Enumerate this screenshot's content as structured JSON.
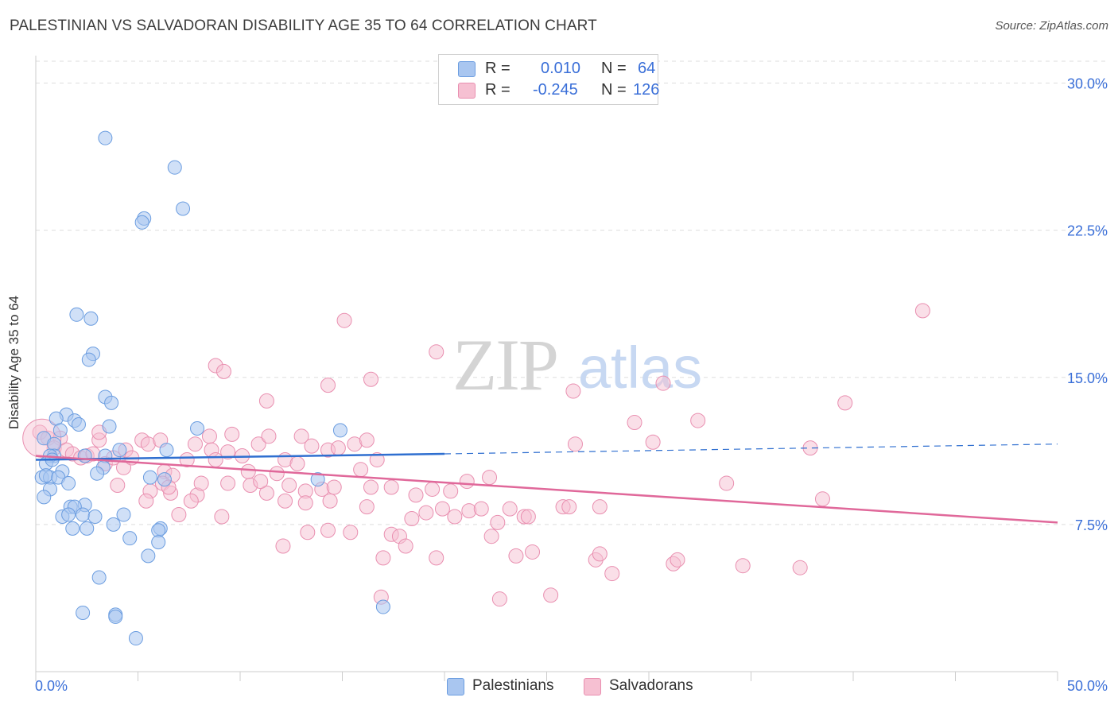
{
  "title": "PALESTINIAN VS SALVADORAN DISABILITY AGE 35 TO 64 CORRELATION CHART",
  "source": "Source: ZipAtlas.com",
  "watermark": {
    "zip": "ZIP",
    "atlas": "atlas"
  },
  "legend": {
    "rows": [
      {
        "r_label": "R =",
        "r_value": "0.010",
        "n_label": "N =",
        "n_value": "64"
      },
      {
        "r_label": "R =",
        "r_value": "-0.245",
        "n_label": "N =",
        "n_value": "126"
      }
    ]
  },
  "colors": {
    "palestinian_fill": "#a9c6f0",
    "palestinian_stroke": "#6b9de0",
    "palestinian_line": "#2f6fd0",
    "salvadoran_fill": "#f6c0d2",
    "salvadoran_stroke": "#e98fb0",
    "salvadoran_line": "#e0689a",
    "tick_label": "#3a6fd8",
    "grid": "#dddddd"
  },
  "chart_data": {
    "type": "scatter",
    "title": "PALESTINIAN VS SALVADORAN DISABILITY AGE 35 TO 64 CORRELATION CHART",
    "xlabel": "",
    "ylabel": "Disability Age 35 to 64",
    "xlim": [
      0,
      50
    ],
    "ylim": [
      0,
      31.4
    ],
    "x_tick_labels": [
      "0.0%",
      "50.0%"
    ],
    "y_ticks": [
      7.5,
      15.0,
      22.5,
      30.0
    ],
    "y_tick_labels": [
      "7.5%",
      "15.0%",
      "22.5%",
      "30.0%"
    ],
    "legend_position": "top-center",
    "series": [
      {
        "name": "Palestinians",
        "r": 0.01,
        "n": 64,
        "trend": {
          "x0": 0,
          "y0": 10.8,
          "x1": 20,
          "y1": 11.1,
          "dashed_to": 50,
          "dashed_y": 11.6
        },
        "points": [
          [
            3.4,
            27.2
          ],
          [
            6.8,
            25.7
          ],
          [
            5.3,
            23.1
          ],
          [
            7.2,
            23.6
          ],
          [
            5.2,
            22.9
          ],
          [
            2.0,
            18.2
          ],
          [
            2.7,
            18.0
          ],
          [
            2.8,
            16.2
          ],
          [
            2.6,
            15.9
          ],
          [
            3.4,
            14.0
          ],
          [
            3.7,
            13.7
          ],
          [
            1.5,
            13.1
          ],
          [
            1.0,
            12.9
          ],
          [
            1.9,
            12.8
          ],
          [
            2.1,
            12.6
          ],
          [
            3.6,
            12.5
          ],
          [
            7.9,
            12.4
          ],
          [
            1.2,
            12.3
          ],
          [
            14.9,
            12.3
          ],
          [
            0.4,
            11.9
          ],
          [
            0.9,
            11.6
          ],
          [
            4.1,
            11.3
          ],
          [
            6.4,
            11.3
          ],
          [
            0.9,
            11.0
          ],
          [
            0.7,
            11.0
          ],
          [
            3.4,
            11.0
          ],
          [
            2.4,
            11.0
          ],
          [
            0.5,
            10.6
          ],
          [
            0.8,
            10.8
          ],
          [
            3.3,
            10.4
          ],
          [
            1.3,
            10.2
          ],
          [
            3.0,
            10.1
          ],
          [
            0.3,
            9.9
          ],
          [
            0.7,
            9.9
          ],
          [
            0.5,
            10.0
          ],
          [
            1.1,
            9.9
          ],
          [
            1.6,
            9.6
          ],
          [
            5.6,
            9.9
          ],
          [
            6.3,
            9.8
          ],
          [
            13.8,
            9.8
          ],
          [
            0.7,
            9.3
          ],
          [
            0.4,
            8.9
          ],
          [
            4.3,
            8.0
          ],
          [
            1.7,
            8.4
          ],
          [
            2.4,
            8.5
          ],
          [
            1.9,
            8.4
          ],
          [
            1.3,
            7.9
          ],
          [
            1.6,
            8.0
          ],
          [
            2.3,
            8.0
          ],
          [
            2.9,
            7.9
          ],
          [
            3.8,
            7.5
          ],
          [
            1.8,
            7.3
          ],
          [
            2.5,
            7.3
          ],
          [
            6.1,
            7.3
          ],
          [
            6.0,
            7.2
          ],
          [
            4.6,
            6.8
          ],
          [
            6.0,
            6.6
          ],
          [
            5.5,
            5.9
          ],
          [
            3.1,
            4.8
          ],
          [
            2.3,
            3.0
          ],
          [
            3.9,
            2.9
          ],
          [
            3.9,
            2.8
          ],
          [
            17.0,
            3.3
          ],
          [
            4.9,
            1.7
          ]
        ]
      },
      {
        "name": "Salvadorans",
        "r": -0.245,
        "n": 126,
        "trend": {
          "x0": 0,
          "y0": 11.0,
          "x1": 50,
          "y1": 7.6
        },
        "points": [
          [
            0.2,
            12.2
          ],
          [
            0.6,
            11.9
          ],
          [
            1.2,
            11.9
          ],
          [
            0.9,
            11.4
          ],
          [
            1.5,
            11.3
          ],
          [
            1.8,
            11.1
          ],
          [
            2.2,
            10.9
          ],
          [
            2.5,
            11.0
          ],
          [
            2.8,
            11.1
          ],
          [
            3.1,
            11.8
          ],
          [
            3.1,
            12.2
          ],
          [
            3.4,
            10.6
          ],
          [
            3.8,
            10.9
          ],
          [
            4.3,
            10.4
          ],
          [
            4.4,
            11.3
          ],
          [
            4.7,
            10.9
          ],
          [
            5.2,
            11.8
          ],
          [
            5.5,
            11.6
          ],
          [
            6.1,
            11.8
          ],
          [
            6.3,
            10.2
          ],
          [
            6.7,
            10.0
          ],
          [
            7.4,
            10.8
          ],
          [
            7.8,
            11.6
          ],
          [
            8.5,
            12.0
          ],
          [
            8.6,
            11.3
          ],
          [
            8.8,
            10.8
          ],
          [
            9.6,
            12.1
          ],
          [
            10.1,
            11.0
          ],
          [
            10.4,
            10.2
          ],
          [
            10.9,
            11.6
          ],
          [
            11.4,
            12.0
          ],
          [
            11.8,
            10.1
          ],
          [
            12.2,
            10.8
          ],
          [
            12.8,
            10.6
          ],
          [
            13.0,
            12.0
          ],
          [
            13.5,
            11.5
          ],
          [
            14.3,
            11.3
          ],
          [
            14.8,
            11.4
          ],
          [
            15.6,
            11.6
          ],
          [
            16.2,
            11.8
          ],
          [
            16.7,
            10.8
          ],
          [
            4.0,
            9.5
          ],
          [
            5.6,
            9.2
          ],
          [
            6.2,
            9.6
          ],
          [
            6.6,
            9.1
          ],
          [
            7.9,
            9.0
          ],
          [
            8.1,
            9.6
          ],
          [
            9.4,
            9.6
          ],
          [
            10.5,
            9.5
          ],
          [
            11.3,
            9.1
          ],
          [
            12.4,
            9.5
          ],
          [
            13.2,
            9.2
          ],
          [
            14.0,
            9.3
          ],
          [
            14.6,
            9.4
          ],
          [
            16.4,
            9.4
          ],
          [
            17.4,
            9.4
          ],
          [
            18.6,
            9.0
          ],
          [
            19.4,
            9.3
          ],
          [
            20.3,
            9.2
          ],
          [
            21.1,
            9.7
          ],
          [
            22.2,
            9.9
          ],
          [
            5.4,
            8.7
          ],
          [
            7.6,
            8.7
          ],
          [
            9.1,
            7.9
          ],
          [
            12.2,
            8.7
          ],
          [
            13.2,
            8.6
          ],
          [
            14.4,
            8.7
          ],
          [
            16.2,
            8.4
          ],
          [
            18.4,
            7.8
          ],
          [
            19.1,
            8.1
          ],
          [
            19.9,
            8.3
          ],
          [
            20.5,
            7.9
          ],
          [
            21.2,
            8.2
          ],
          [
            21.8,
            8.3
          ],
          [
            22.6,
            7.6
          ],
          [
            23.2,
            8.3
          ],
          [
            23.9,
            7.9
          ],
          [
            24.1,
            7.9
          ],
          [
            25.8,
            8.4
          ],
          [
            26.1,
            8.4
          ],
          [
            27.6,
            8.4
          ],
          [
            13.3,
            7.1
          ],
          [
            14.3,
            7.2
          ],
          [
            15.4,
            7.1
          ],
          [
            17.4,
            7.0
          ],
          [
            17.8,
            6.9
          ],
          [
            18.1,
            6.4
          ],
          [
            22.3,
            6.9
          ],
          [
            12.1,
            6.4
          ],
          [
            17.0,
            5.8
          ],
          [
            19.6,
            5.8
          ],
          [
            23.5,
            5.9
          ],
          [
            24.3,
            6.1
          ],
          [
            27.4,
            5.7
          ],
          [
            27.6,
            6.0
          ],
          [
            28.2,
            5.0
          ],
          [
            31.2,
            5.5
          ],
          [
            34.6,
            5.4
          ],
          [
            37.4,
            5.3
          ],
          [
            31.4,
            5.7
          ],
          [
            16.9,
            3.8
          ],
          [
            22.7,
            3.7
          ],
          [
            25.2,
            3.9
          ],
          [
            8.8,
            15.6
          ],
          [
            9.2,
            15.3
          ],
          [
            11.3,
            13.8
          ],
          [
            14.3,
            14.6
          ],
          [
            16.4,
            14.9
          ],
          [
            15.1,
            17.9
          ],
          [
            19.6,
            16.3
          ],
          [
            26.3,
            14.3
          ],
          [
            29.3,
            12.7
          ],
          [
            30.2,
            11.7
          ],
          [
            30.7,
            14.7
          ],
          [
            32.4,
            12.8
          ],
          [
            26.4,
            11.6
          ],
          [
            33.8,
            9.6
          ],
          [
            37.9,
            11.4
          ],
          [
            38.5,
            8.8
          ],
          [
            39.6,
            13.7
          ],
          [
            43.4,
            18.4
          ],
          [
            9.4,
            11.2
          ],
          [
            11.0,
            9.7
          ],
          [
            6.5,
            9.4
          ],
          [
            15.9,
            10.3
          ],
          [
            7.0,
            8.0
          ]
        ]
      }
    ]
  },
  "bottom_legend": [
    {
      "label": "Palestinians"
    },
    {
      "label": "Salvadorans"
    }
  ]
}
